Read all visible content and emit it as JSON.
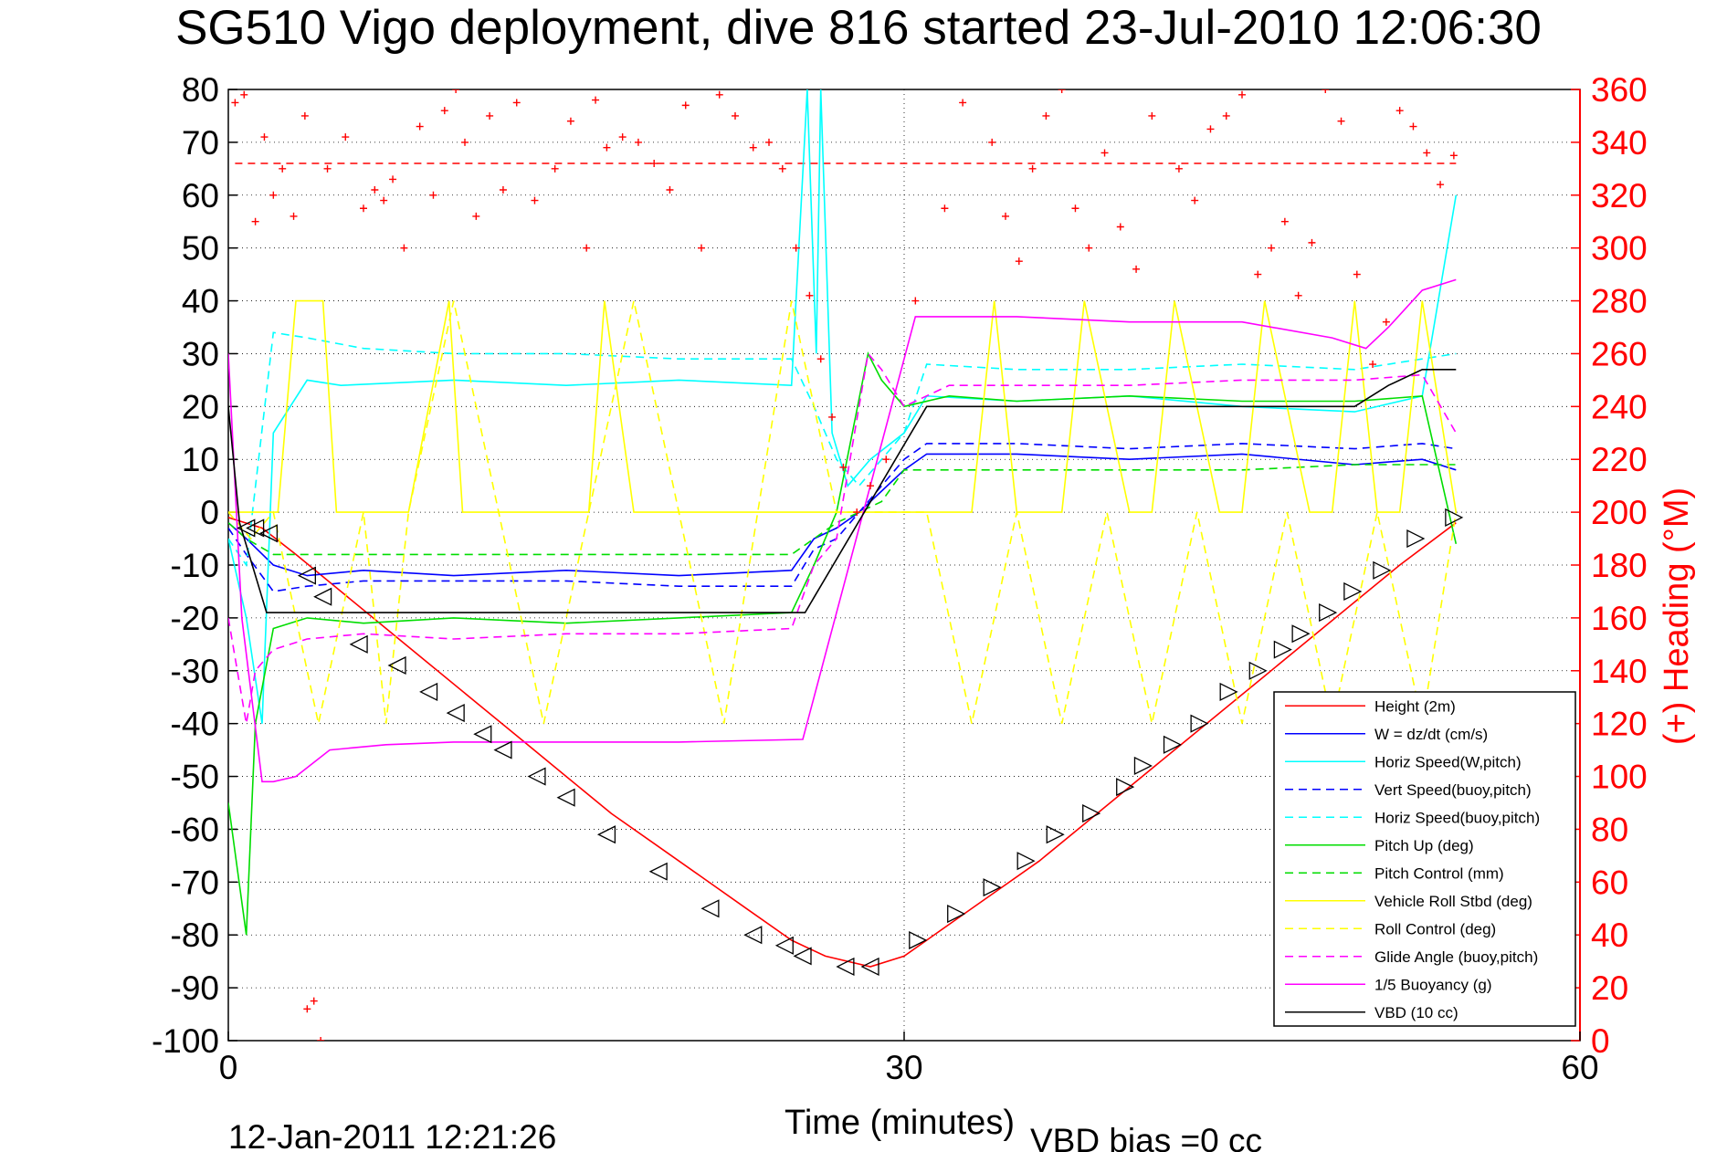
{
  "figure": {
    "title": "SG510 Vigo deployment, dive 816 started 23-Jul-2010 12:06:30",
    "timestamp": "12-Jan-2011 12:21:26",
    "vbd_bias_note": "VBD bias =0 cc"
  },
  "chart_data": {
    "type": "line",
    "title": "SG510 Vigo deployment, dive 816 started 23-Jul-2010 12:06:30",
    "xlabel": "Time (minutes)",
    "ylabel": "",
    "y2label": "(+) Heading (°M)",
    "xlim": [
      0,
      60
    ],
    "ylim": [
      -100,
      80
    ],
    "y2lim": [
      0,
      360
    ],
    "xticks": [
      0,
      30,
      60
    ],
    "yticks": [
      -100,
      -90,
      -80,
      -70,
      -60,
      -50,
      -40,
      -30,
      -20,
      -10,
      0,
      10,
      20,
      30,
      40,
      50,
      60,
      70,
      80
    ],
    "y2ticks": [
      0,
      20,
      40,
      60,
      80,
      100,
      120,
      140,
      160,
      180,
      200,
      220,
      240,
      260,
      280,
      300,
      320,
      340,
      360
    ],
    "grid": true,
    "legend_position": "bottom-right",
    "colors": {
      "heading_axis": "#ff0000",
      "height": "#ff0000",
      "w": "#0000ff",
      "horiz_speed_w": "#00ffff",
      "vert_speed_buoy": "#0000ff",
      "horiz_speed_buoy": "#00ffff",
      "pitch_up": "#00dd00",
      "pitch_control": "#00dd00",
      "roll": "#ffff00",
      "roll_control": "#ffff00",
      "glide_angle": "#ff00ff",
      "buoyancy": "#ff00ff",
      "vbd": "#000000",
      "heading_marker": "#ff0000",
      "gps_marker": "#000000"
    },
    "series": [
      {
        "name": "Height (2m)",
        "key": "height",
        "style": "solid",
        "x": [
          0,
          1.5,
          3,
          5,
          7,
          9,
          11,
          13,
          15,
          17,
          19,
          21,
          23,
          25,
          26.5,
          28.5,
          30,
          32,
          34,
          36,
          38,
          40,
          42,
          44,
          46,
          48,
          50,
          52,
          54.5
        ],
        "y": [
          -1,
          -3,
          -8,
          -15,
          -22,
          -29,
          -36,
          -43,
          -50,
          -57,
          -63,
          -69,
          -75,
          -81,
          -84,
          -86,
          -84,
          -78,
          -72,
          -66,
          -59,
          -52,
          -45,
          -38,
          -31,
          -24,
          -17,
          -10,
          -2
        ]
      },
      {
        "name": "W = dz/dt (cm/s)",
        "key": "w",
        "style": "solid",
        "x": [
          0,
          0.8,
          2,
          3.5,
          6,
          10,
          15,
          20,
          25,
          26,
          27,
          28,
          30,
          31,
          35,
          40,
          45,
          50,
          53,
          54.5
        ],
        "y": [
          -2,
          -5,
          -10,
          -12,
          -11,
          -12,
          -11,
          -12,
          -11,
          -5,
          -3,
          0,
          8,
          11,
          11,
          10,
          11,
          9,
          10,
          8
        ]
      },
      {
        "name": "Horiz Speed(W,pitch)",
        "key": "horiz_speed_w",
        "style": "solid",
        "x": [
          0,
          0.8,
          1.5,
          2,
          3.5,
          5,
          10,
          15,
          20,
          25,
          25.7,
          26.1,
          26.3,
          26.8,
          27.5,
          28.5,
          30,
          31,
          35,
          40,
          45,
          50,
          53,
          54.5
        ],
        "y": [
          -5,
          -20,
          -40,
          15,
          25,
          24,
          25,
          24,
          25,
          24,
          80,
          30,
          80,
          15,
          5,
          10,
          15,
          22,
          21,
          22,
          20,
          19,
          22,
          60
        ]
      },
      {
        "name": "Vert Speed(buoy,pitch)",
        "key": "vert_speed_buoy",
        "style": "dashed",
        "x": [
          0,
          0.8,
          2,
          3.5,
          6,
          10,
          15,
          20,
          25,
          26,
          27,
          28,
          30,
          31,
          35,
          40,
          45,
          50,
          53,
          54.5
        ],
        "y": [
          -3,
          -8,
          -15,
          -14,
          -13,
          -13,
          -13,
          -14,
          -14,
          -7,
          -5,
          0,
          10,
          13,
          13,
          12,
          13,
          12,
          13,
          12
        ]
      },
      {
        "name": "Horiz Speed(buoy,pitch)",
        "key": "horiz_speed_buoy",
        "style": "dashed",
        "x": [
          0,
          0.8,
          2,
          3.5,
          6,
          10,
          15,
          20,
          25,
          26,
          27,
          28,
          30,
          31,
          35,
          40,
          45,
          50,
          53,
          54.5
        ],
        "y": [
          -5,
          -10,
          34,
          33,
          31,
          30,
          30,
          29,
          29,
          20,
          10,
          5,
          15,
          28,
          27,
          27,
          28,
          27,
          29,
          30
        ]
      },
      {
        "name": "Pitch Up (deg)",
        "key": "pitch_up",
        "style": "solid",
        "x": [
          0,
          0.8,
          1.2,
          2,
          3.5,
          6,
          10,
          15,
          20,
          25,
          26,
          27,
          28.4,
          29,
          30,
          32,
          35,
          40,
          45,
          50,
          53,
          54.5
        ],
        "y": [
          -55,
          -80,
          -40,
          -22,
          -20,
          -21,
          -20,
          -21,
          -20,
          -19,
          -10,
          0,
          30,
          25,
          20,
          22,
          21,
          22,
          21,
          21,
          22,
          -6
        ]
      },
      {
        "name": "Pitch Control (mm)",
        "key": "pitch_control",
        "style": "dashed",
        "x": [
          0,
          0.8,
          2,
          3.5,
          6,
          10,
          15,
          20,
          25,
          26,
          27,
          28,
          29,
          30,
          32,
          35,
          40,
          45,
          50,
          53,
          54.5
        ],
        "y": [
          -2,
          -5,
          -8,
          -8,
          -8,
          -8,
          -8,
          -8,
          -8,
          -5,
          -2,
          0,
          2,
          8,
          8,
          8,
          8,
          8,
          9,
          9,
          9
        ]
      },
      {
        "name": "Vehicle Roll Stbd (deg)",
        "key": "roll",
        "style": "solid",
        "x": [
          0,
          1.2,
          2.2,
          3,
          4.2,
          4.8,
          6,
          8,
          9.8,
          10.4,
          12,
          14,
          16,
          16.7,
          18,
          20,
          22,
          24,
          25.5,
          27,
          28,
          30,
          31,
          33,
          34,
          35,
          37,
          38,
          40,
          41,
          42,
          44,
          45,
          46,
          48,
          49,
          50,
          51,
          52,
          53,
          54.5
        ],
        "y": [
          0,
          0,
          0,
          40,
          40,
          0,
          0,
          0,
          40,
          0,
          0,
          0,
          0,
          40,
          0,
          0,
          0,
          0,
          0,
          0,
          0,
          0,
          0,
          0,
          40,
          0,
          0,
          40,
          0,
          0,
          40,
          0,
          0,
          40,
          0,
          0,
          40,
          0,
          0,
          40,
          0
        ]
      },
      {
        "name": "Roll Control (deg)",
        "key": "roll_control",
        "style": "dashed",
        "x": [
          0,
          1,
          2,
          4,
          6,
          7,
          8,
          10,
          12,
          14,
          16,
          18,
          20,
          22,
          23.5,
          25,
          27,
          29,
          31,
          33,
          35,
          37,
          39,
          41,
          43,
          45,
          47,
          49,
          51,
          53,
          54.5
        ],
        "y": [
          0,
          -5,
          0,
          -40,
          0,
          -40,
          0,
          40,
          0,
          -40,
          0,
          40,
          0,
          -40,
          0,
          40,
          0,
          0,
          0,
          -40,
          0,
          -40,
          0,
          -40,
          0,
          -40,
          0,
          -40,
          0,
          -40,
          0
        ]
      },
      {
        "name": "Glide Angle (buoy,pitch)",
        "key": "glide_angle",
        "style": "dashed",
        "x": [
          0,
          0.8,
          1.2,
          2,
          3.5,
          6,
          10,
          15,
          20,
          25,
          26,
          27,
          28.4,
          29,
          30,
          32,
          35,
          40,
          45,
          50,
          53,
          54.5
        ],
        "y": [
          -20,
          -40,
          -30,
          -26,
          -24,
          -23,
          -24,
          -23,
          -23,
          -22,
          -10,
          -5,
          30,
          27,
          20,
          24,
          24,
          24,
          25,
          25,
          26,
          15
        ]
      },
      {
        "name": "1/5 Buoyancy (g)",
        "key": "buoyancy",
        "style": "solid",
        "x": [
          0,
          0.6,
          1.5,
          2,
          3,
          4.5,
          7,
          10,
          15,
          20,
          25.5,
          30.5,
          35,
          40,
          45,
          49,
          50.5,
          51.5,
          53,
          54.5
        ],
        "y": [
          30,
          -20,
          -51,
          -51,
          -50,
          -45,
          -44,
          -43.5,
          -43.5,
          -43.5,
          -43,
          37,
          37,
          36,
          36,
          33,
          31,
          35,
          42,
          44
        ]
      },
      {
        "name": "VBD (10 cc)",
        "key": "vbd",
        "style": "solid",
        "x": [
          0,
          0.5,
          1.7,
          3,
          10,
          20,
          25.6,
          31,
          40,
          50,
          51.5,
          53,
          54.5
        ],
        "y": [
          20,
          -2,
          -19,
          -19,
          -19,
          -19,
          -19,
          20,
          20,
          20,
          24,
          27,
          27
        ]
      }
    ],
    "heading": {
      "name": "Heading",
      "axis": "right",
      "marker": "+",
      "reference_value": 332,
      "x": [
        0.3,
        0.7,
        1.2,
        1.6,
        2,
        2.4,
        2.9,
        3.4,
        3.9,
        4.4,
        5.2,
        6,
        6.5,
        6.9,
        7.3,
        7.8,
        8.5,
        9.1,
        9.6,
        10.1,
        10.5,
        11,
        11.6,
        12.2,
        12.8,
        13.6,
        14.5,
        15.2,
        15.9,
        16.3,
        16.8,
        17.5,
        18.2,
        18.9,
        19.6,
        20.3,
        21,
        21.8,
        22.5,
        23.3,
        24,
        24.6,
        25.2,
        25.8,
        26.3,
        26.8,
        27.3,
        27.9,
        28.5,
        29.2,
        30.5,
        31.8,
        32.6,
        33.3,
        33.9,
        34.5,
        35.1,
        35.7,
        36.3,
        37,
        37.6,
        38.2,
        38.9,
        39.6,
        40.3,
        41,
        41.6,
        42.2,
        42.9,
        43.6,
        44.3,
        45,
        45.7,
        46.3,
        46.9,
        47.5,
        48.1,
        48.7,
        49.4,
        50.1,
        50.8,
        51.4,
        52,
        52.6,
        53.2,
        53.8,
        54.4,
        3.5,
        3.8,
        4.1
      ],
      "y": [
        355,
        358,
        310,
        342,
        320,
        330,
        312,
        350,
        365,
        330,
        342,
        315,
        322,
        318,
        326,
        300,
        346,
        320,
        352,
        360,
        340,
        312,
        350,
        322,
        355,
        318,
        330,
        348,
        300,
        356,
        338,
        342,
        340,
        332,
        322,
        354,
        300,
        358,
        350,
        338,
        340,
        330,
        300,
        282,
        258,
        236,
        217,
        200,
        210,
        220,
        280,
        315,
        355,
        365,
        340,
        312,
        295,
        330,
        350,
        360,
        315,
        300,
        336,
        308,
        292,
        350,
        365,
        330,
        318,
        345,
        350,
        358,
        290,
        300,
        310,
        282,
        302,
        360,
        348,
        290,
        256,
        272,
        352,
        346,
        336,
        324,
        335,
        12,
        15,
        0
      ],
      "gps_marks": [
        [
          0.8,
          1.2,
          1.8,
          3.5,
          4.2,
          5.8,
          7.5,
          8.9,
          10.1,
          11.3,
          12.2,
          13.7,
          15,
          16.8,
          19.1,
          21.4,
          23.3,
          24.7,
          25.5,
          27.4,
          28.5
        ],
        [
          -3,
          -3,
          -4,
          -12,
          -16,
          -25,
          -29,
          -34,
          -38,
          -42,
          -45,
          -50,
          -54,
          -61,
          -68,
          -75,
          -80,
          -82,
          -84,
          -86,
          -86
        ]
      ],
      "gps_up": [
        [
          30.6,
          32.3,
          33.9,
          35.4,
          36.7,
          38.3,
          39.8,
          40.6,
          41.9,
          43.1,
          44.4,
          45.7,
          46.8,
          47.6,
          48.8,
          49.9,
          51.2,
          52.7,
          54.4
        ],
        [
          -81,
          -76,
          -71,
          -66,
          -61,
          -57,
          -52,
          -48,
          -44,
          -40,
          -34,
          -30,
          -26,
          -23,
          -19,
          -15,
          -11,
          -5,
          -1
        ]
      ]
    }
  }
}
